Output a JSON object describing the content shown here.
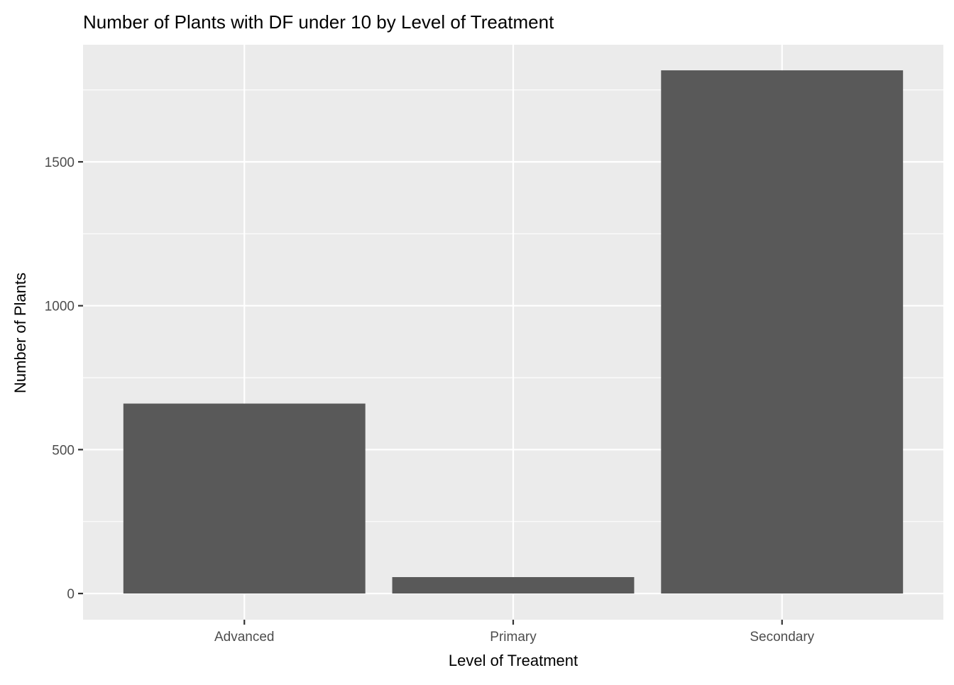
{
  "chart_data": {
    "type": "bar",
    "title": "Number of Plants with DF under 10 by Level of Treatment",
    "xlabel": "Level of Treatment",
    "ylabel": "Number of Plants",
    "categories": [
      "Advanced",
      "Primary",
      "Secondary"
    ],
    "values": [
      660,
      57,
      1818
    ],
    "ylim": [
      -91,
      1907
    ],
    "yticks": [
      0,
      500,
      1000,
      1500
    ],
    "ytick_labels": [
      "0",
      "500",
      "1000",
      "1500"
    ],
    "grid": true,
    "legend": "none",
    "colors": {
      "panel_background": "#EBEBEB",
      "grid_major": "#FFFFFF",
      "bar_fill": "#595959",
      "axis_text": "#4D4D4D",
      "title_text": "#000000"
    }
  }
}
